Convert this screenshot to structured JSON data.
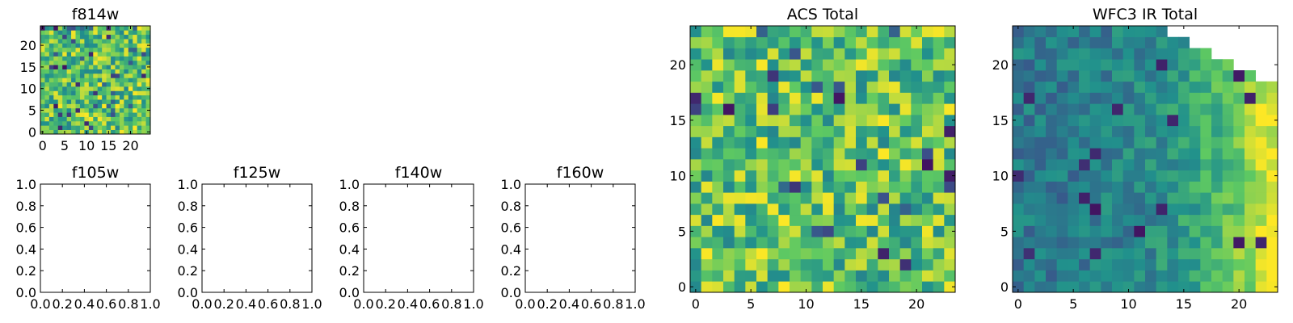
{
  "colormap": [
    "#440154",
    "#3b528b",
    "#21918c",
    "#5ec962",
    "#fde725"
  ],
  "chart_data": [
    {
      "id": "f814w",
      "type": "heatmap",
      "title": "f814w",
      "grid_size": 25,
      "xlim": [
        -0.5,
        24.5
      ],
      "ylim": [
        -0.5,
        24.5
      ],
      "xticks": [
        0,
        5,
        10,
        15,
        20
      ],
      "yticks": [
        0,
        5,
        10,
        15,
        20
      ],
      "xtick_labels": [
        "0",
        "5",
        "10",
        "15",
        "20"
      ],
      "ytick_labels": [
        "0",
        "5",
        "10",
        "15",
        "20"
      ],
      "value_range": [
        0,
        1
      ],
      "pattern": "uniform-random noise, mostly green-yellow with sparse dark pixels",
      "full_rows": 25,
      "taper_per_row": 0,
      "gradient": 0
    },
    {
      "id": "f105w",
      "type": "heatmap",
      "title": "f105w",
      "empty": true,
      "xlim": [
        0,
        1
      ],
      "ylim": [
        0,
        1
      ],
      "xticks": [
        0,
        0.2,
        0.4,
        0.6,
        0.8,
        1.0
      ],
      "yticks": [
        0,
        0.2,
        0.4,
        0.6,
        0.8,
        1.0
      ],
      "xtick_labels": [
        "0.0",
        "0.2",
        "0.4",
        "0.6",
        "0.8",
        "1.0"
      ],
      "ytick_labels": [
        "0.0",
        "0.2",
        "0.4",
        "0.6",
        "0.8",
        "1.0"
      ]
    },
    {
      "id": "f125w",
      "type": "heatmap",
      "title": "f125w",
      "empty": true,
      "xlim": [
        0,
        1
      ],
      "ylim": [
        0,
        1
      ],
      "xticks": [
        0,
        0.2,
        0.4,
        0.6,
        0.8,
        1.0
      ],
      "yticks": [
        0,
        0.2,
        0.4,
        0.6,
        0.8,
        1.0
      ],
      "xtick_labels": [
        "0.0",
        "0.2",
        "0.4",
        "0.6",
        "0.8",
        "1.0"
      ],
      "ytick_labels": [
        "0.0",
        "0.2",
        "0.4",
        "0.6",
        "0.8",
        "1.0"
      ]
    },
    {
      "id": "f140w",
      "type": "heatmap",
      "title": "f140w",
      "empty": true,
      "xlim": [
        0,
        1
      ],
      "ylim": [
        0,
        1
      ],
      "xticks": [
        0,
        0.2,
        0.4,
        0.6,
        0.8,
        1.0
      ],
      "yticks": [
        0,
        0.2,
        0.4,
        0.6,
        0.8,
        1.0
      ],
      "xtick_labels": [
        "0.0",
        "0.2",
        "0.4",
        "0.6",
        "0.8",
        "1.0"
      ],
      "ytick_labels": [
        "0.0",
        "0.2",
        "0.4",
        "0.6",
        "0.8",
        "1.0"
      ]
    },
    {
      "id": "f160w",
      "type": "heatmap",
      "title": "f160w",
      "empty": true,
      "xlim": [
        0,
        1
      ],
      "ylim": [
        0,
        1
      ],
      "xticks": [
        0,
        0.2,
        0.4,
        0.6,
        0.8,
        1.0
      ],
      "yticks": [
        0,
        0.2,
        0.4,
        0.6,
        0.8,
        1.0
      ],
      "xtick_labels": [
        "0.0",
        "0.2",
        "0.4",
        "0.6",
        "0.8",
        "1.0"
      ],
      "ytick_labels": [
        "0.0",
        "0.2",
        "0.4",
        "0.6",
        "0.8",
        "1.0"
      ]
    },
    {
      "id": "acs-total",
      "type": "heatmap",
      "title": "ACS Total",
      "grid_size": 24,
      "xlim": [
        -0.5,
        23.5
      ],
      "ylim": [
        -0.5,
        23.5
      ],
      "xticks": [
        0,
        5,
        10,
        15,
        20
      ],
      "yticks": [
        0,
        5,
        10,
        15,
        20
      ],
      "xtick_labels": [
        "0",
        "5",
        "10",
        "15",
        "20"
      ],
      "ytick_labels": [
        "0",
        "5",
        "10",
        "15",
        "20"
      ],
      "value_range": [
        0,
        1
      ],
      "pattern": "uniform-random noise, mostly green-yellow with sparse dark pixels",
      "full_rows": 24,
      "taper_per_row": 0,
      "gradient": 0
    },
    {
      "id": "wfc3-ir-total",
      "type": "heatmap",
      "title": "WFC3 IR Total",
      "grid_size": 24,
      "xlim": [
        -0.5,
        23.5
      ],
      "ylim": [
        -0.5,
        23.5
      ],
      "xticks": [
        0,
        5,
        10,
        15,
        20
      ],
      "yticks": [
        0,
        5,
        10,
        15,
        20
      ],
      "xtick_labels": [
        "0",
        "5",
        "10",
        "15",
        "20"
      ],
      "ytick_labels": [
        "0",
        "5",
        "10",
        "15",
        "20"
      ],
      "value_range": [
        0,
        1
      ],
      "pattern": "blue-green field brightening to yellow toward the right edge; upper-right corner has no data (white)",
      "full_rows": 19,
      "taper_per_row": 2,
      "gradient": 1
    }
  ]
}
